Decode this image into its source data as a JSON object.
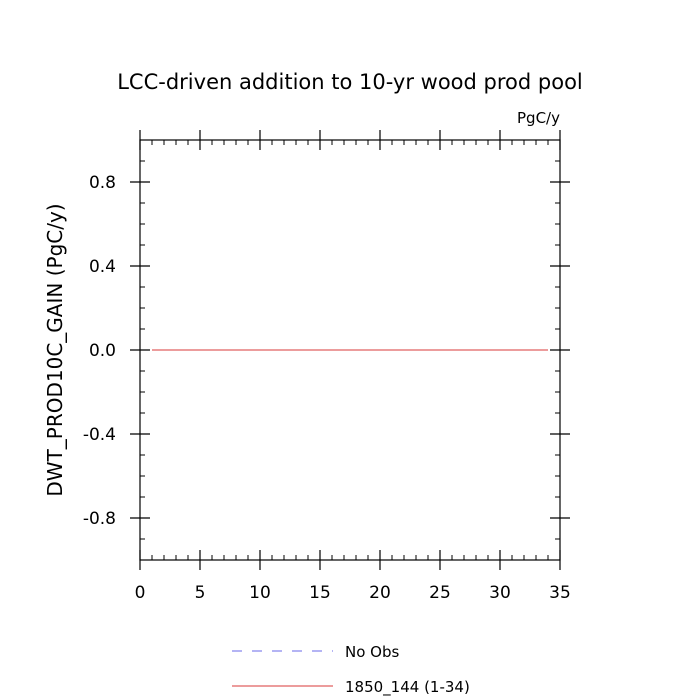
{
  "chart_data": {
    "type": "line",
    "title": "LCC-driven addition to 10-yr wood prod pool",
    "units_label": "PgC/y",
    "ylabel": "DWT_PROD10C_GAIN  (PgC/y)",
    "xlabel": "",
    "xlim": [
      0,
      35
    ],
    "ylim": [
      -1.0,
      1.0
    ],
    "x_ticks": [
      0,
      5,
      10,
      15,
      20,
      25,
      30,
      35
    ],
    "x_tick_labels": [
      "0",
      "5",
      "10",
      "15",
      "20",
      "25",
      "30",
      "35"
    ],
    "y_ticks": [
      -0.8,
      -0.4,
      0.0,
      0.4,
      0.8
    ],
    "y_tick_labels": [
      "-0.8",
      "-0.4",
      "0.0",
      "0.4",
      "0.8"
    ],
    "x_minor_step": 1,
    "y_minor_step": 0.1,
    "grid": false,
    "legend_position": "bottom",
    "series": [
      {
        "name": "1850_144 (1-34)",
        "color": "#e06060",
        "dash": "solid",
        "x": [
          1,
          2,
          3,
          4,
          5,
          6,
          7,
          8,
          9,
          10,
          11,
          12,
          13,
          14,
          15,
          16,
          17,
          18,
          19,
          20,
          21,
          22,
          23,
          24,
          25,
          26,
          27,
          28,
          29,
          30,
          31,
          32,
          33,
          34
        ],
        "values": [
          0,
          0,
          0,
          0,
          0,
          0,
          0,
          0,
          0,
          0,
          0,
          0,
          0,
          0,
          0,
          0,
          0,
          0,
          0,
          0,
          0,
          0,
          0,
          0,
          0,
          0,
          0,
          0,
          0,
          0,
          0,
          0,
          0,
          0
        ]
      }
    ],
    "legend": [
      {
        "label": "No Obs",
        "color": "#8888ee",
        "dash": "dashed"
      },
      {
        "label": "1850_144 (1-34)",
        "color": "#e06060",
        "dash": "solid"
      }
    ]
  }
}
